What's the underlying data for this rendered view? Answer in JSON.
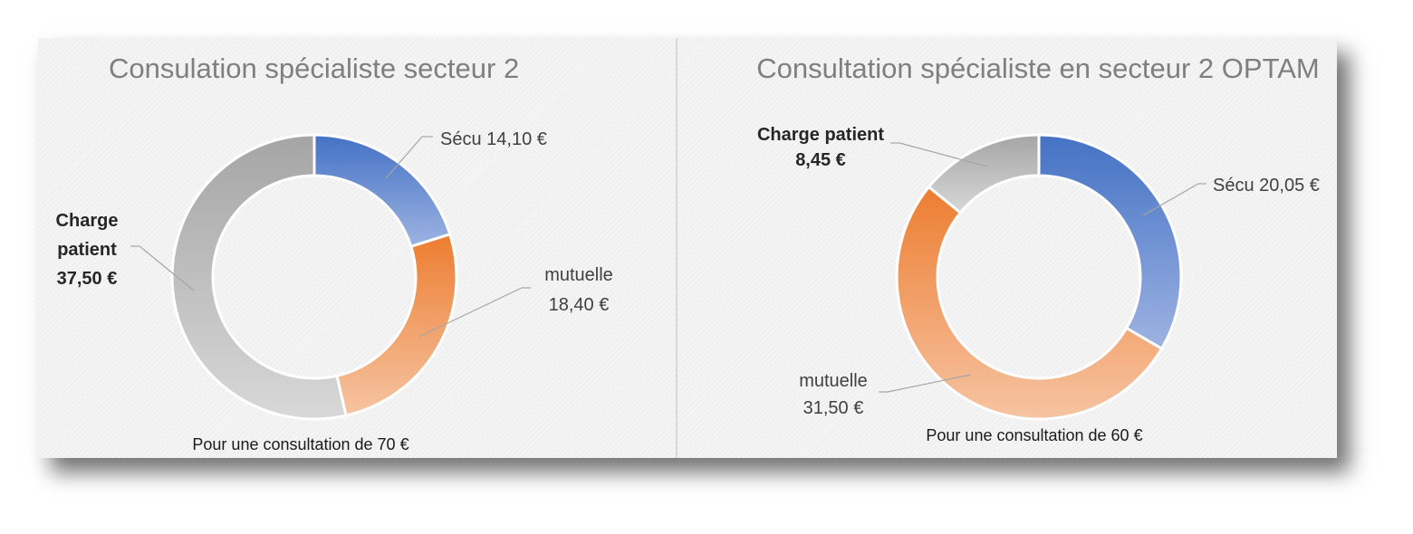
{
  "chart_data": [
    {
      "type": "pie",
      "title": "Consulation spécialiste secteur 2",
      "note": "Pour une consultation de 70 €",
      "slices": [
        {
          "name": "Sécu",
          "value": 14.1,
          "label_lines": [
            "Sécu  14,10 €"
          ],
          "bold": false,
          "color": "#4a76c9"
        },
        {
          "name": "mutuelle",
          "value": 18.4,
          "label_lines": [
            "mutuelle",
            "18,40 €"
          ],
          "bold": false,
          "color": "#ed7d31"
        },
        {
          "name": "Charge patient",
          "value": 37.5,
          "label_lines": [
            "Charge",
            "patient",
            "37,50 €"
          ],
          "bold": true,
          "color": "#a5a5a5"
        }
      ]
    },
    {
      "type": "pie",
      "title": "Consultation spécialiste en secteur 2 OPTAM",
      "note": "Pour une consultation de 60 €",
      "slices": [
        {
          "name": "Sécu",
          "value": 20.05,
          "label_lines": [
            "Sécu  20,05 €"
          ],
          "bold": false,
          "color": "#4a76c9"
        },
        {
          "name": "mutuelle",
          "value": 31.5,
          "label_lines": [
            "mutuelle",
            "31,50 €"
          ],
          "bold": false,
          "color": "#ed7d31"
        },
        {
          "name": "Charge patient",
          "value": 8.45,
          "label_lines": [
            "Charge patient",
            "8,45 €"
          ],
          "bold": true,
          "color": "#a5a5a5"
        }
      ]
    }
  ]
}
